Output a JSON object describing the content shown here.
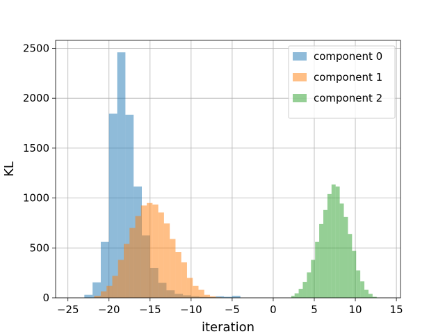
{
  "chart_data": {
    "type": "bar",
    "title": "",
    "xlabel": "iteration",
    "ylabel": "KL",
    "xlim": [
      -26.5,
      15.5
    ],
    "ylim": [
      0,
      2580
    ],
    "x_ticks": [
      -25,
      -20,
      -15,
      -10,
      -5,
      0,
      5,
      10,
      15
    ],
    "y_ticks": [
      0,
      500,
      1000,
      1500,
      2000,
      2500
    ],
    "grid": true,
    "legend_position": "top-right",
    "series": [
      {
        "name": "component 0",
        "color": "#1f77b4",
        "opacity": 0.5,
        "bins": [
          [
            -23.0,
            -22.0,
            30
          ],
          [
            -22.0,
            -21.0,
            155
          ],
          [
            -21.0,
            -20.0,
            560
          ],
          [
            -20.0,
            -19.0,
            1845
          ],
          [
            -19.0,
            -18.0,
            2460
          ],
          [
            -18.0,
            -17.0,
            1835
          ],
          [
            -17.0,
            -16.0,
            1115
          ],
          [
            -16.0,
            -15.0,
            625
          ],
          [
            -15.0,
            -14.0,
            300
          ],
          [
            -14.0,
            -13.0,
            150
          ],
          [
            -13.0,
            -12.0,
            75
          ],
          [
            -12.0,
            -11.0,
            40
          ],
          [
            -11.0,
            -10.0,
            25
          ],
          [
            -10.0,
            -9.0,
            15
          ],
          [
            -9.0,
            -8.0,
            10
          ],
          [
            -8.0,
            -7.0,
            8
          ],
          [
            -7.0,
            -6.0,
            15
          ],
          [
            -6.0,
            -5.0,
            10
          ],
          [
            -5.0,
            -4.0,
            20
          ]
        ]
      },
      {
        "name": "component 1",
        "color": "#ff7f0e",
        "opacity": 0.5,
        "bins": [
          [
            -21.8,
            -21.0,
            20
          ],
          [
            -21.0,
            -20.3,
            65
          ],
          [
            -20.3,
            -19.6,
            120
          ],
          [
            -19.6,
            -18.9,
            220
          ],
          [
            -18.9,
            -18.2,
            380
          ],
          [
            -18.2,
            -17.5,
            540
          ],
          [
            -17.5,
            -16.8,
            700
          ],
          [
            -16.8,
            -16.1,
            820
          ],
          [
            -16.1,
            -15.4,
            925
          ],
          [
            -15.4,
            -14.7,
            950
          ],
          [
            -14.7,
            -14.0,
            935
          ],
          [
            -14.0,
            -13.3,
            855
          ],
          [
            -13.3,
            -12.6,
            745
          ],
          [
            -12.6,
            -11.9,
            590
          ],
          [
            -11.9,
            -11.2,
            460
          ],
          [
            -11.2,
            -10.5,
            355
          ],
          [
            -10.5,
            -9.8,
            200
          ],
          [
            -9.8,
            -9.1,
            120
          ],
          [
            -9.1,
            -8.4,
            80
          ],
          [
            -8.4,
            -7.7,
            30
          ],
          [
            -7.7,
            -7.0,
            15
          ],
          [
            -7.0,
            -6.3,
            5
          ]
        ]
      },
      {
        "name": "component 2",
        "color": "#2ca02c",
        "opacity": 0.5,
        "bins": [
          [
            2.2,
            2.6,
            20
          ],
          [
            2.6,
            3.1,
            45
          ],
          [
            3.1,
            3.6,
            90
          ],
          [
            3.6,
            4.1,
            160
          ],
          [
            4.1,
            4.6,
            255
          ],
          [
            4.6,
            5.1,
            380
          ],
          [
            5.1,
            5.6,
            560
          ],
          [
            5.6,
            6.1,
            740
          ],
          [
            6.1,
            6.6,
            880
          ],
          [
            6.6,
            7.1,
            1040
          ],
          [
            7.1,
            7.6,
            1135
          ],
          [
            7.6,
            8.1,
            1115
          ],
          [
            8.1,
            8.6,
            945
          ],
          [
            8.6,
            9.1,
            810
          ],
          [
            9.1,
            9.6,
            640
          ],
          [
            9.6,
            10.1,
            470
          ],
          [
            10.1,
            10.6,
            275
          ],
          [
            10.6,
            11.1,
            165
          ],
          [
            11.1,
            11.6,
            80
          ],
          [
            11.6,
            12.1,
            40
          ],
          [
            12.1,
            12.6,
            10
          ]
        ]
      }
    ]
  }
}
